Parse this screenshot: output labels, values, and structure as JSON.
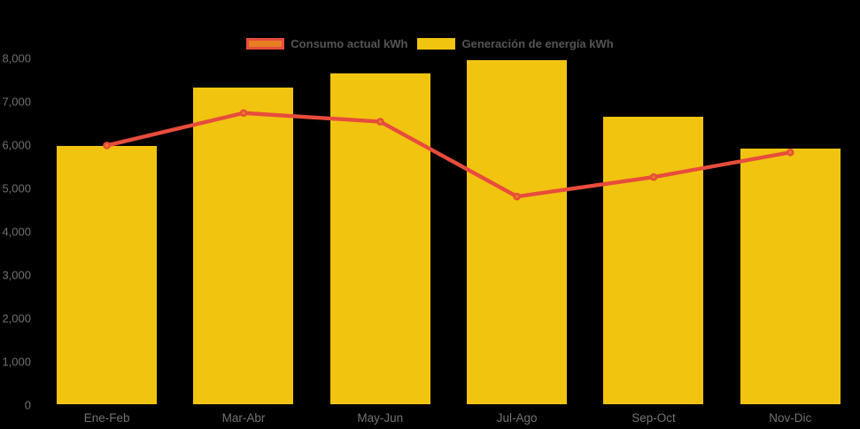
{
  "chart_data": {
    "type": "bar",
    "title": "",
    "xlabel": "",
    "ylabel": "",
    "categories": [
      "Ene-Feb",
      "Mar-Abr",
      "May-Jun",
      "Jul-Ago",
      "Sep-Oct",
      "Nov-Dic"
    ],
    "series": [
      {
        "name": "Consumo actual kWh",
        "type": "line",
        "color": "#e74c3c",
        "point_fill": "#e67e22",
        "values": [
          5990,
          6740,
          6540,
          4810,
          5260,
          5830
        ]
      },
      {
        "name": "Generación de energía kWh",
        "type": "bar",
        "color": "#f1c40f",
        "values": [
          5970,
          7320,
          7650,
          7970,
          6650,
          5910
        ]
      }
    ],
    "ylim": [
      0,
      8000
    ],
    "y_ticks": [
      {
        "value": 8000,
        "label": "8,000"
      },
      {
        "value": 7000,
        "label": "7,000"
      },
      {
        "value": 6000,
        "label": "6,000"
      },
      {
        "value": 5000,
        "label": "5,000"
      },
      {
        "value": 4000,
        "label": "4,000"
      },
      {
        "value": 3000,
        "label": "3,000"
      },
      {
        "value": 2000,
        "label": "2,000"
      },
      {
        "value": 1000,
        "label": "1,000"
      },
      {
        "value": 0,
        "label": "0"
      }
    ],
    "legend_position": "top",
    "grid": false,
    "background": "#000000",
    "axis_text_color": "#707070"
  }
}
